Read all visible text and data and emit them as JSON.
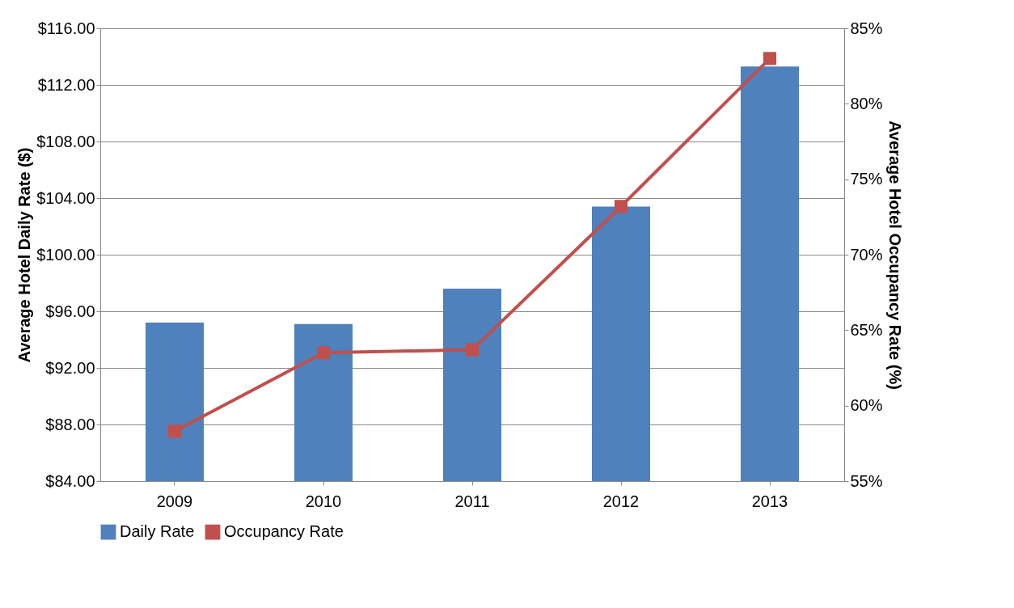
{
  "chart_data": {
    "type": "bar",
    "categories": [
      "2009",
      "2010",
      "2011",
      "2012",
      "2013"
    ],
    "ylabel": "Average Hotel Daily Rate ($)",
    "y2label": "Average Hotel Occupancy Rate (%)",
    "series": [
      {
        "name": "Daily Rate",
        "color": "#4f81bd",
        "values": [
          95.2,
          95.1,
          97.6,
          103.4,
          113.3
        ]
      },
      {
        "name": "Occupancy Rate",
        "type": "line",
        "axis": "y2",
        "color": "#c0504d",
        "marker": "square",
        "values": [
          58.3,
          63.5,
          63.7,
          73.2,
          83.0
        ]
      }
    ],
    "ylim": [
      84,
      116
    ],
    "yticks": [
      {
        "value": 84,
        "label": "$84.00"
      },
      {
        "value": 88,
        "label": "$88.00"
      },
      {
        "value": 92,
        "label": "$92.00"
      },
      {
        "value": 96,
        "label": "$96.00"
      },
      {
        "value": 100,
        "label": "$100.00"
      },
      {
        "value": 104,
        "label": "$104.00"
      },
      {
        "value": 108,
        "label": "$108.00"
      },
      {
        "value": 112,
        "label": "$112.00"
      },
      {
        "value": 116,
        "label": "$116.00"
      }
    ],
    "y2lim": [
      55,
      85
    ],
    "y2ticks": [
      {
        "value": 55,
        "label": "55%"
      },
      {
        "value": 60,
        "label": "60%"
      },
      {
        "value": 65,
        "label": "65%"
      },
      {
        "value": 70,
        "label": "70%"
      },
      {
        "value": 75,
        "label": "75%"
      },
      {
        "value": 80,
        "label": "80%"
      },
      {
        "value": 85,
        "label": "85%"
      }
    ],
    "grid": "y",
    "legend": "bottom"
  }
}
